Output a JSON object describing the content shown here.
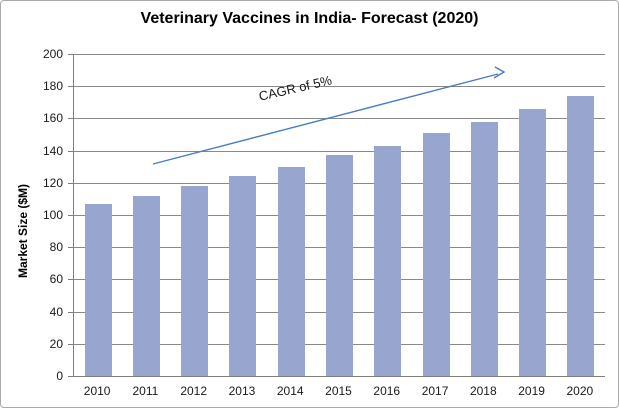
{
  "title": "Veterinary Vaccines in India- Forecast (2020)",
  "annotation": {
    "text": "CAGR of 5%"
  },
  "chart_data": {
    "type": "bar",
    "title": "Veterinary Vaccines in India- Forecast (2020)",
    "categories": [
      "2010",
      "2011",
      "2012",
      "2013",
      "2014",
      "2015",
      "2016",
      "2017",
      "2018",
      "2019",
      "2020"
    ],
    "values": [
      107,
      112,
      118,
      124,
      130,
      137,
      143,
      151,
      158,
      166,
      174
    ],
    "xlabel": "",
    "ylabel": "Market Size ($M)",
    "ylim": [
      0,
      200
    ],
    "ytick_step": 20,
    "grid": true,
    "legend": false,
    "annotation": {
      "text": "CAGR of 5%",
      "trend_pct": "5%"
    },
    "colors": {
      "bar_fill": "#97a5cf",
      "gridline": "#898989",
      "axis_line": "#7f7f7f",
      "arrow": "#4a7ebb",
      "text": "#1a1a1a",
      "title_text": "#000000",
      "background": "#ffffff",
      "frame_border": "#a9a9a9"
    }
  }
}
